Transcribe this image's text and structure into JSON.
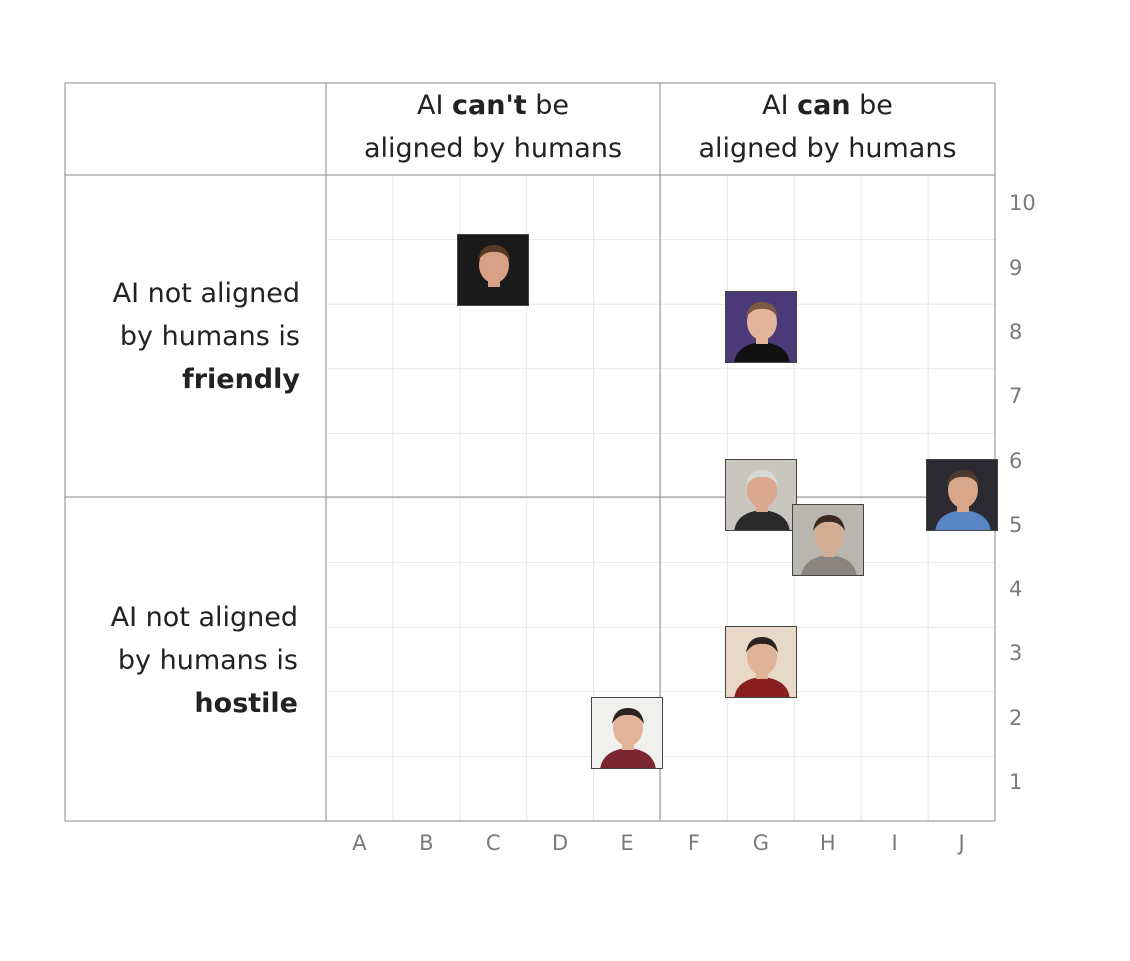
{
  "headers": {
    "columns": [
      {
        "line1_pre": "AI ",
        "line1_bold": "can't",
        "line1_post": " be",
        "line2": "aligned by humans"
      },
      {
        "line1_pre": "AI ",
        "line1_bold": "can",
        "line1_post": " be",
        "line2": "aligned by humans"
      }
    ],
    "rows": [
      {
        "line1": "AI not aligned",
        "line2": "by humans is",
        "line3_bold": "friendly"
      },
      {
        "line1": "AI not aligned",
        "line2": "by humans is",
        "line3_bold": "hostile"
      }
    ]
  },
  "chart_data": {
    "type": "scatter",
    "x_categories": [
      "A",
      "B",
      "C",
      "D",
      "E",
      "F",
      "G",
      "H",
      "I",
      "J"
    ],
    "y_ticks": [
      "10",
      "9",
      "8",
      "7",
      "6",
      "5",
      "4",
      "3",
      "2",
      "1"
    ],
    "ylim": [
      1,
      10
    ],
    "grid": true,
    "points": [
      {
        "x": "C",
        "y": 9.0,
        "marker": "portrait photo",
        "bg": "#1a1a1a",
        "face": "#d8a085",
        "hair": "#5a3a22",
        "shirt": "#1b1b1b"
      },
      {
        "x": "G",
        "y": 8.1,
        "marker": "portrait photo",
        "bg": "#4b3a78",
        "face": "#e2b49a",
        "hair": "#7a5a44",
        "shirt": "#111111"
      },
      {
        "x": "G",
        "y": 5.5,
        "marker": "portrait photo",
        "bg": "#c9c6c0",
        "face": "#d9a88e",
        "hair": "#d8d8d8",
        "shirt": "#2a2a2a"
      },
      {
        "x": "J",
        "y": 5.5,
        "marker": "portrait photo",
        "bg": "#2a2a30",
        "face": "#d8a689",
        "hair": "#4a3a30",
        "shirt": "#5a86c6"
      },
      {
        "x": "H",
        "y": 4.8,
        "marker": "portrait photo",
        "bg": "#b9b6b0",
        "face": "#d4ad95",
        "hair": "#3a2a22",
        "shirt": "#8a8580"
      },
      {
        "x": "G",
        "y": 2.9,
        "marker": "portrait photo",
        "bg": "#e8d8c8",
        "face": "#e0b296",
        "hair": "#2a2220",
        "shirt": "#8a1f1f"
      },
      {
        "x": "E",
        "y": 1.8,
        "marker": "portrait photo",
        "bg": "#f0f0ee",
        "face": "#e4b49a",
        "hair": "#2a2220",
        "shirt": "#7a2530"
      }
    ]
  }
}
